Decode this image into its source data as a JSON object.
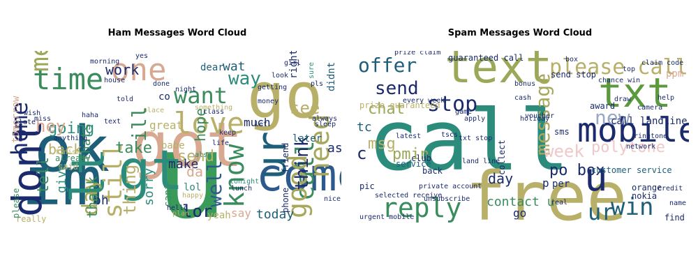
{
  "chart_data": [
    {
      "type": "wordcloud",
      "title": "Ham Messages Word Cloud",
      "words": [
        {
          "text": "u",
          "color": "#3a9a5a"
        },
        {
          "text": "im",
          "color": "#1d5e78"
        },
        {
          "text": "go",
          "color": "#b8b068"
        },
        {
          "text": "got",
          "color": "#d8a890"
        },
        {
          "text": "ok",
          "color": "#1d5e78"
        },
        {
          "text": "gt",
          "color": "#2c8c7c"
        },
        {
          "text": "lt",
          "color": "#2c8c7c"
        },
        {
          "text": "dont",
          "color": "#1a2a6c"
        },
        {
          "text": "come",
          "color": "#2c5a8c"
        },
        {
          "text": "ur",
          "color": "#1d5e78"
        },
        {
          "text": "love",
          "color": "#b8b068"
        },
        {
          "text": "know",
          "color": "#3a8c5c"
        },
        {
          "text": "one",
          "color": "#d8a890"
        },
        {
          "text": "time",
          "color": "#3a8c5c"
        },
        {
          "text": "me",
          "color": "#9aa858"
        },
        {
          "text": "want",
          "color": "#3a8c5c"
        },
        {
          "text": "call",
          "color": "#3a8c5c"
        },
        {
          "text": "need",
          "color": "#a8a85c"
        },
        {
          "text": "good",
          "color": "#a8a85c"
        },
        {
          "text": "still",
          "color": "#b8b068"
        },
        {
          "text": "day",
          "color": "#a8a85c"
        },
        {
          "text": "home",
          "color": "#1a2a6c"
        },
        {
          "text": "going",
          "color": "#2c8c7c"
        },
        {
          "text": "lor",
          "color": "#1a2a6c"
        },
        {
          "text": "see",
          "color": "#b8b068"
        },
        {
          "text": "way",
          "color": "#2c8c7c"
        },
        {
          "text": "well",
          "color": "#2c5a8c"
        },
        {
          "text": "thing",
          "color": "#b8b068"
        },
        {
          "text": "tell",
          "color": "#3a8c5c"
        },
        {
          "text": "think",
          "color": "#1a2a6c"
        },
        {
          "text": "send",
          "color": "#b8b068"
        },
        {
          "text": "make",
          "color": "#1a2a6c"
        },
        {
          "text": "take",
          "color": "#3a8c5c"
        },
        {
          "text": "today",
          "color": "#1d5e78"
        },
        {
          "text": "much",
          "color": "#1a2a6c"
        },
        {
          "text": "hope",
          "color": "#3a8c5c"
        },
        {
          "text": "hey",
          "color": "#d8a890"
        },
        {
          "text": "work",
          "color": "#1a2a6c"
        },
        {
          "text": "back",
          "color": "#b8b068"
        },
        {
          "text": "give",
          "color": "#2c8c7c"
        },
        {
          "text": "oh",
          "color": "#1a2a6c"
        },
        {
          "text": "sorry",
          "color": "#2c8c7c"
        },
        {
          "text": "thank",
          "color": "#3a8c5c"
        },
        {
          "text": "ask",
          "color": "#1a2a6c"
        },
        {
          "text": "wat",
          "color": "#1d5e78"
        },
        {
          "text": "da",
          "color": "#d8a890"
        },
        {
          "text": "say",
          "color": "#d8a890"
        },
        {
          "text": "later",
          "color": "#1d5e78"
        },
        {
          "text": "thats",
          "color": "#3a8c5c"
        },
        {
          "text": "cant",
          "color": "#3a8c5c"
        },
        {
          "text": "great",
          "color": "#b8b068"
        },
        {
          "text": "lol",
          "color": "#2c8c7c"
        },
        {
          "text": "yeah",
          "color": "#b8b068"
        },
        {
          "text": "co",
          "color": "#1a2a6c"
        },
        {
          "text": "babe",
          "color": "#b8b068"
        },
        {
          "text": "dear",
          "color": "#1d5e78"
        },
        {
          "text": "right",
          "color": "#1a2a6c"
        },
        {
          "text": "didnt",
          "color": "#1d5e78"
        },
        {
          "text": "already",
          "color": "#3a8c5c"
        },
        {
          "text": "said",
          "color": "#b8b068"
        },
        {
          "text": "really",
          "color": "#b8b068"
        },
        {
          "text": "night",
          "color": "#1a2a6c"
        },
        {
          "text": "phone",
          "color": "#1a2a6c"
        },
        {
          "text": "friend",
          "color": "#1a2a6c"
        },
        {
          "text": "tonight",
          "color": "#2c8c7c"
        },
        {
          "text": "life",
          "color": "#1a2a6c"
        },
        {
          "text": "also",
          "color": "#2c8c7c"
        },
        {
          "text": "please",
          "color": "#3a8c5c"
        },
        {
          "text": "tomorrow",
          "color": "#d8a890"
        },
        {
          "text": "keep",
          "color": "#1a2a6c"
        },
        {
          "text": "happy",
          "color": "#b8b068"
        },
        {
          "text": "pls",
          "color": "#1a2a6c"
        },
        {
          "text": "sure",
          "color": "#2c8c7c"
        },
        {
          "text": "girl",
          "color": "#1a2a6c"
        },
        {
          "text": "look",
          "color": "#1a2a6c"
        },
        {
          "text": "morning",
          "color": "#1a2a6c"
        },
        {
          "text": "house",
          "color": "#1a2a6c"
        },
        {
          "text": "told",
          "color": "#1a2a6c"
        },
        {
          "text": "lunch",
          "color": "#1a2a6c"
        },
        {
          "text": "hello",
          "color": "#1a2a6c"
        },
        {
          "text": "class",
          "color": "#1a2a6c"
        },
        {
          "text": "something",
          "color": "#b8b068"
        },
        {
          "text": "money",
          "color": "#1a2a6c"
        },
        {
          "text": "always",
          "color": "#1a2a6c"
        },
        {
          "text": "nice",
          "color": "#1a2a6c"
        },
        {
          "text": "sleep",
          "color": "#1a2a6c"
        },
        {
          "text": "place",
          "color": "#b8b068"
        },
        {
          "text": "text",
          "color": "#1a2a6c"
        },
        {
          "text": "let",
          "color": "#1a2a6c"
        },
        {
          "text": "getting",
          "color": "#1a2a6c"
        },
        {
          "text": "plan",
          "color": "#b8b068"
        },
        {
          "text": "haha",
          "color": "#1a2a6c"
        },
        {
          "text": "miss",
          "color": "#1a2a6c"
        },
        {
          "text": "anything",
          "color": "#1a2a6c"
        },
        {
          "text": "finish",
          "color": "#b8b068"
        },
        {
          "text": "wish",
          "color": "#1a2a6c"
        },
        {
          "text": "late",
          "color": "#1a2a6c"
        },
        {
          "text": "done",
          "color": "#1a2a6c"
        },
        {
          "text": "yes",
          "color": "#1a2a6c"
        },
        {
          "text": "ill",
          "color": "#3a8c5c"
        }
      ]
    },
    {
      "type": "wordcloud",
      "title": "Spam Messages Word Cloud",
      "words": [
        {
          "text": "call",
          "color": "#2c8c7c"
        },
        {
          "text": "free",
          "color": "#b8b068"
        },
        {
          "text": "text",
          "color": "#9aa858"
        },
        {
          "text": "txt",
          "color": "#5a9a3c"
        },
        {
          "text": "mobile",
          "color": "#1a2a6c"
        },
        {
          "text": "u",
          "color": "#1a2a6c"
        },
        {
          "text": "please call",
          "color": "#b8b068"
        },
        {
          "text": "reply",
          "color": "#3a8c5c"
        },
        {
          "text": "ur",
          "color": "#1d5e78"
        },
        {
          "text": "win",
          "color": "#1d5e78"
        },
        {
          "text": "offer",
          "color": "#1d5e78"
        },
        {
          "text": "stop",
          "color": "#1a2a6c"
        },
        {
          "text": "send",
          "color": "#1a2a6c"
        },
        {
          "text": "chat",
          "color": "#9aa858"
        },
        {
          "text": "message",
          "color": "#a8a85c"
        },
        {
          "text": "new",
          "color": "#9aa8c8"
        },
        {
          "text": "week",
          "color": "#f0c8c8"
        },
        {
          "text": "polytone",
          "color": "#f0c8c8"
        },
        {
          "text": "msg",
          "color": "#b8b068"
        },
        {
          "text": "pmin",
          "color": "#9aa858"
        },
        {
          "text": "tc",
          "color": "#1d5e78"
        },
        {
          "text": "po box",
          "color": "#1a2a6c"
        },
        {
          "text": "day",
          "color": "#1a2a6c"
        },
        {
          "text": "contact u",
          "color": "#3a8c5c"
        },
        {
          "text": "call landline",
          "color": "#1a2a6c"
        },
        {
          "text": "customer service",
          "color": "#1d5e78"
        },
        {
          "text": "guaranteed call",
          "color": "#1a2a6c"
        },
        {
          "text": "prize guaranteed",
          "color": "#b8b068"
        },
        {
          "text": "c",
          "color": "#1a2a6c"
        },
        {
          "text": "p",
          "color": "#1a2a6c"
        },
        {
          "text": "per",
          "color": "#1a2a6c"
        },
        {
          "text": "sms",
          "color": "#1a2a6c"
        },
        {
          "text": "award",
          "color": "#1a2a6c"
        },
        {
          "text": "send stop",
          "color": "#1a2a6c"
        },
        {
          "text": "service",
          "color": "#1d5e78"
        },
        {
          "text": "back",
          "color": "#1a2a6c"
        },
        {
          "text": "go",
          "color": "#1a2a6c"
        },
        {
          "text": "pic",
          "color": "#1a2a6c"
        },
        {
          "text": "club",
          "color": "#1a2a6c"
        },
        {
          "text": "collect",
          "color": "#1a2a6c"
        },
        {
          "text": "nokia",
          "color": "#1a2a6c"
        },
        {
          "text": "orange",
          "color": "#1a2a6c"
        },
        {
          "text": "find",
          "color": "#1a2a6c"
        },
        {
          "text": "land line",
          "color": "#1a2a6c"
        },
        {
          "text": "txt stop",
          "color": "#1a2a6c"
        },
        {
          "text": "urgent mobile",
          "color": "#1a2a6c"
        },
        {
          "text": "selected receive",
          "color": "#1a2a6c"
        },
        {
          "text": "private account",
          "color": "#1a2a6c"
        },
        {
          "text": "ringtone",
          "color": "#1a2a6c"
        },
        {
          "text": "latest",
          "color": "#1a2a6c"
        },
        {
          "text": "game",
          "color": "#1a2a6c"
        },
        {
          "text": "ppm",
          "color": "#d8a890"
        },
        {
          "text": "cash",
          "color": "#1a2a6c"
        },
        {
          "text": "voucher",
          "color": "#1a2a6c"
        },
        {
          "text": "every week",
          "color": "#1a2a6c"
        },
        {
          "text": "prize claim",
          "color": "#1a2a6c"
        },
        {
          "text": "box",
          "color": "#1a2a6c"
        },
        {
          "text": "top",
          "color": "#1a2a6c"
        },
        {
          "text": "credit",
          "color": "#1a2a6c"
        },
        {
          "text": "tscs",
          "color": "#1a2a6c"
        },
        {
          "text": "apply",
          "color": "#1a2a6c"
        },
        {
          "text": "bonus",
          "color": "#1a2a6c"
        },
        {
          "text": "camera",
          "color": "#1a2a6c"
        },
        {
          "text": "real",
          "color": "#1a2a6c"
        },
        {
          "text": "help",
          "color": "#1a2a6c"
        },
        {
          "text": "network",
          "color": "#1a2a6c"
        },
        {
          "text": "unsubscribe",
          "color": "#1a2a6c"
        },
        {
          "text": "chance win",
          "color": "#1a2a6c"
        },
        {
          "text": "draw",
          "color": "#1a2a6c"
        },
        {
          "text": "claim code",
          "color": "#1a2a6c"
        },
        {
          "text": "holiday",
          "color": "#1a2a6c"
        },
        {
          "text": "name",
          "color": "#1a2a6c"
        }
      ]
    }
  ]
}
